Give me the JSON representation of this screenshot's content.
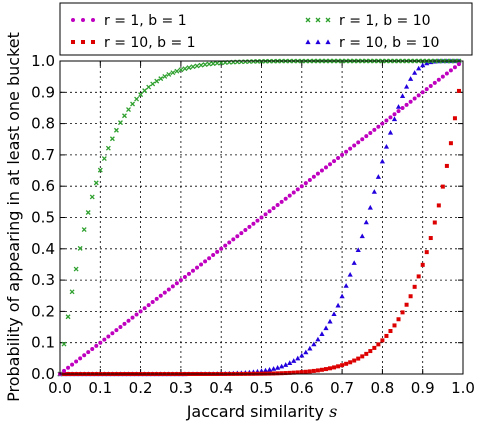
{
  "chart_data": {
    "type": "scatter",
    "xlabel": "Jaccard similarity",
    "xlabel_var": "s",
    "ylabel": "Probability of appearing in at least one bucket",
    "xlim": [
      0,
      1
    ],
    "ylim": [
      0,
      1
    ],
    "xticks": [
      "0.0",
      "0.1",
      "0.2",
      "0.3",
      "0.4",
      "0.5",
      "0.6",
      "0.7",
      "0.8",
      "0.9",
      "1.0"
    ],
    "yticks": [
      "0.0",
      "0.1",
      "0.2",
      "0.3",
      "0.4",
      "0.5",
      "0.6",
      "0.7",
      "0.8",
      "0.9",
      "1.0"
    ],
    "grid": true,
    "legend_position": "top",
    "x": [
      0.0,
      0.01,
      0.02,
      0.03,
      0.04,
      0.05,
      0.06,
      0.07,
      0.08,
      0.09,
      0.1,
      0.11,
      0.12,
      0.13,
      0.14,
      0.15,
      0.16,
      0.17,
      0.18,
      0.19,
      0.2,
      0.21,
      0.22,
      0.23,
      0.24,
      0.25,
      0.26,
      0.27,
      0.28,
      0.29,
      0.3,
      0.31,
      0.32,
      0.33,
      0.34,
      0.35,
      0.36,
      0.37,
      0.38,
      0.39,
      0.4,
      0.41,
      0.42,
      0.43,
      0.44,
      0.45,
      0.46,
      0.47,
      0.48,
      0.49,
      0.5,
      0.51,
      0.52,
      0.53,
      0.54,
      0.55,
      0.56,
      0.57,
      0.58,
      0.59,
      0.6,
      0.61,
      0.62,
      0.63,
      0.64,
      0.65,
      0.66,
      0.67,
      0.68,
      0.69,
      0.7,
      0.71,
      0.72,
      0.73,
      0.74,
      0.75,
      0.76,
      0.77,
      0.78,
      0.79,
      0.8,
      0.81,
      0.82,
      0.83,
      0.84,
      0.85,
      0.86,
      0.87,
      0.88,
      0.89,
      0.9,
      0.91,
      0.92,
      0.93,
      0.94,
      0.95,
      0.96,
      0.97,
      0.98,
      0.99
    ],
    "series": [
      {
        "name": "r = 1, b = 1",
        "color": "#bf00bf",
        "marker": "circle",
        "values": [
          0.0,
          0.01,
          0.02,
          0.03,
          0.04,
          0.05,
          0.06,
          0.07,
          0.08,
          0.09,
          0.1,
          0.11,
          0.12,
          0.13,
          0.14,
          0.15,
          0.16,
          0.17,
          0.18,
          0.19,
          0.2,
          0.21,
          0.22,
          0.23,
          0.24,
          0.25,
          0.26,
          0.27,
          0.28,
          0.29,
          0.3,
          0.31,
          0.32,
          0.33,
          0.34,
          0.35,
          0.36,
          0.37,
          0.38,
          0.39,
          0.4,
          0.41,
          0.42,
          0.43,
          0.44,
          0.45,
          0.46,
          0.47,
          0.48,
          0.49,
          0.5,
          0.51,
          0.52,
          0.53,
          0.54,
          0.55,
          0.56,
          0.57,
          0.58,
          0.59,
          0.6,
          0.61,
          0.62,
          0.63,
          0.64,
          0.65,
          0.66,
          0.67,
          0.68,
          0.69,
          0.7,
          0.71,
          0.72,
          0.73,
          0.74,
          0.75,
          0.76,
          0.77,
          0.78,
          0.79,
          0.8,
          0.81,
          0.82,
          0.83,
          0.84,
          0.85,
          0.86,
          0.87,
          0.88,
          0.89,
          0.9,
          0.91,
          0.92,
          0.93,
          0.94,
          0.95,
          0.96,
          0.97,
          0.98,
          0.99
        ]
      },
      {
        "name": "r = 10, b = 1",
        "color": "#dd0000",
        "marker": "square",
        "values": [
          0.0,
          0.0,
          0.0,
          0.0,
          0.0,
          0.0,
          0.0,
          0.0,
          0.0,
          0.0,
          0.0,
          0.0,
          0.0,
          0.0,
          0.0,
          0.0,
          0.0,
          0.0,
          0.0,
          0.0,
          0.0,
          0.0,
          0.0,
          0.0,
          0.0,
          0.0,
          0.0,
          0.0,
          0.0,
          0.0,
          0.0,
          0.0,
          0.0,
          0.0,
          0.0,
          0.0,
          0.0,
          0.0,
          0.0,
          0.0,
          0.0001,
          0.0001,
          0.0002,
          0.0002,
          0.0003,
          0.0003,
          0.0004,
          0.0005,
          0.0006,
          0.0008,
          0.001,
          0.0012,
          0.0014,
          0.0017,
          0.0021,
          0.0025,
          0.003,
          0.0036,
          0.0043,
          0.0051,
          0.006,
          0.0071,
          0.0084,
          0.0098,
          0.0115,
          0.0135,
          0.0157,
          0.0182,
          0.0211,
          0.0245,
          0.0282,
          0.0326,
          0.0374,
          0.043,
          0.0492,
          0.0563,
          0.0643,
          0.0733,
          0.0834,
          0.0947,
          0.1074,
          0.1216,
          0.1374,
          0.1552,
          0.1749,
          0.1969,
          0.2213,
          0.2484,
          0.2785,
          0.3118,
          0.3487,
          0.3894,
          0.4344,
          0.484,
          0.5386,
          0.5987,
          0.6648,
          0.7374,
          0.8171,
          0.9044
        ]
      },
      {
        "name": "r = 1, b = 10",
        "color": "#2ea02e",
        "marker": "x",
        "values": [
          0.0,
          0.0956,
          0.1829,
          0.2626,
          0.3352,
          0.4013,
          0.4614,
          0.516,
          0.5656,
          0.6106,
          0.6513,
          0.6882,
          0.7215,
          0.7516,
          0.7787,
          0.8031,
          0.8251,
          0.8448,
          0.8626,
          0.8784,
          0.8926,
          0.9053,
          0.9167,
          0.9267,
          0.9357,
          0.9437,
          0.9508,
          0.957,
          0.9626,
          0.9674,
          0.9718,
          0.9755,
          0.9789,
          0.9818,
          0.9843,
          0.9865,
          0.9885,
          0.9902,
          0.9916,
          0.9929,
          0.994,
          0.9949,
          0.9957,
          0.9964,
          0.997,
          0.9975,
          0.9979,
          0.9983,
          0.9986,
          0.9988,
          0.999,
          0.9992,
          0.9994,
          0.9995,
          0.9996,
          0.9997,
          0.9997,
          0.9998,
          0.9998,
          0.9999,
          0.9999,
          0.9999,
          0.9999,
          1.0,
          1.0,
          1.0,
          1.0,
          1.0,
          1.0,
          1.0,
          1.0,
          1.0,
          1.0,
          1.0,
          1.0,
          1.0,
          1.0,
          1.0,
          1.0,
          1.0,
          1.0,
          1.0,
          1.0,
          1.0,
          1.0,
          1.0,
          1.0,
          1.0,
          1.0,
          1.0,
          1.0,
          1.0,
          1.0,
          1.0,
          1.0,
          1.0,
          1.0,
          1.0,
          1.0,
          1.0
        ]
      },
      {
        "name": "r = 10, b = 10",
        "color": "#2200dd",
        "marker": "triangle",
        "values": [
          0.0,
          0.0,
          0.0,
          0.0,
          0.0,
          0.0,
          0.0,
          0.0,
          0.0,
          0.0,
          0.0,
          0.0,
          0.0,
          0.0,
          0.0,
          0.0,
          0.0,
          0.0,
          0.0,
          0.0,
          0.0,
          0.0,
          0.0,
          0.0,
          0.0,
          0.0,
          0.0,
          0.0,
          0.0,
          0.0,
          0.0,
          0.0,
          0.0001,
          0.0002,
          0.0002,
          0.0003,
          0.0004,
          0.0005,
          0.0006,
          0.0008,
          0.001,
          0.0013,
          0.0017,
          0.0022,
          0.0027,
          0.0034,
          0.0042,
          0.0052,
          0.0065,
          0.008,
          0.0097,
          0.0118,
          0.0142,
          0.017,
          0.0204,
          0.0246,
          0.0296,
          0.0355,
          0.0423,
          0.0502,
          0.0592,
          0.0696,
          0.0818,
          0.0955,
          0.1108,
          0.1282,
          0.1469,
          0.1681,
          0.1918,
          0.2192,
          0.2485,
          0.2822,
          0.3176,
          0.3551,
          0.3964,
          0.4406,
          0.4849,
          0.5319,
          0.5824,
          0.6301,
          0.6795,
          0.7265,
          0.7715,
          0.8146,
          0.8541,
          0.8885,
          0.9183,
          0.9433,
          0.9626,
          0.9767,
          0.9865,
          0.9929,
          0.9966,
          0.9986,
          0.9995,
          0.9998,
          1.0,
          1.0,
          1.0,
          1.0
        ]
      }
    ]
  }
}
